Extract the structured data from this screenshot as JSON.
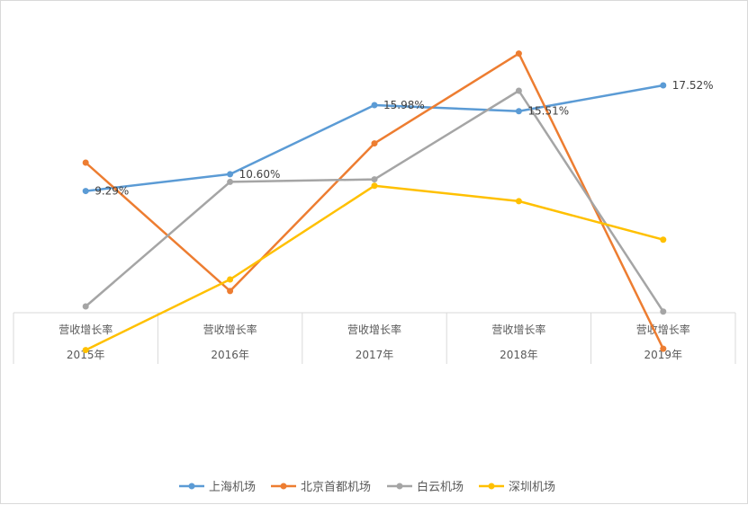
{
  "chart_data": {
    "type": "line",
    "title": "",
    "xlabel": "",
    "ylabel": "",
    "axis_mode": "no-value-axis",
    "gridlines": false,
    "legend_position": "bottom",
    "categories": [
      {
        "metric": "营收增长率",
        "year": "2015年"
      },
      {
        "metric": "营收增长率",
        "year": "2016年"
      },
      {
        "metric": "营收增长率",
        "year": "2017年"
      },
      {
        "metric": "营收增长率",
        "year": "2018年"
      },
      {
        "metric": "营收增长率",
        "year": "2019年"
      }
    ],
    "ylim": [
      -6,
      22
    ],
    "series": [
      {
        "name": "上海机场",
        "color": "#5b9bd5",
        "values": [
          9.29,
          10.6,
          15.98,
          15.51,
          17.52
        ],
        "labels": [
          "9.29%",
          "10.60%",
          "15.98%",
          "15.51%",
          "17.52%"
        ]
      },
      {
        "name": "北京首都机场",
        "color": "#ed7d31",
        "values": [
          11.5,
          1.5,
          13.0,
          20.0,
          -3.0
        ]
      },
      {
        "name": "白云机场",
        "color": "#a5a5a5",
        "values": [
          0.3,
          10.0,
          10.2,
          17.1,
          -0.1
        ]
      },
      {
        "name": "深圳机场",
        "color": "#ffc000",
        "values": [
          -3.1,
          2.4,
          9.7,
          8.5,
          5.5
        ]
      }
    ]
  }
}
